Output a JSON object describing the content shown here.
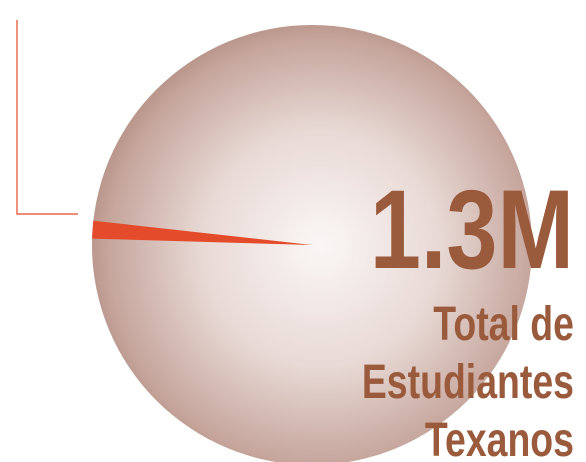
{
  "chart_data": {
    "type": "pie",
    "values": [
      1.3,
      98.7
    ],
    "highlight_color": "#e34b2a",
    "base_color": "#c5a8a0",
    "callout_color": "#e34b2a",
    "headline_value": "1.3M",
    "caption_lines": [
      "Total de",
      "Estudiantes",
      "Texanos"
    ],
    "text_color": "#9a5a3c"
  }
}
